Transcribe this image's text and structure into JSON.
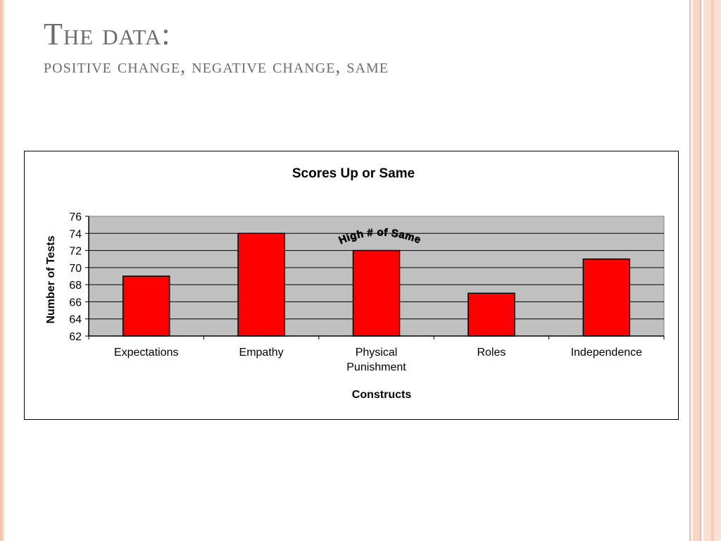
{
  "slide": {
    "title": "The data:",
    "subtitle": "positive change, negative change, same"
  },
  "colors": {
    "bar": "#ff0000",
    "plot_background": "#c0c0c0",
    "accent_stripe": "#f7c3ad",
    "title_text": "#6d6a73"
  },
  "chart_data": {
    "type": "bar",
    "title": "Scores Up or Same",
    "xlabel": "Constructs",
    "ylabel": "Number of Tests",
    "categories": [
      "Expectations",
      "Empathy",
      "Physical Punishment",
      "Roles",
      "Independence"
    ],
    "values": [
      69,
      74,
      72,
      67,
      71
    ],
    "ylim": [
      62,
      76
    ],
    "yticks": [
      62,
      64,
      66,
      68,
      70,
      72,
      74,
      76
    ],
    "grid": true,
    "legend": "none",
    "annotations": [
      {
        "text": "High # of Same",
        "category": "Physical Punishment"
      }
    ]
  }
}
